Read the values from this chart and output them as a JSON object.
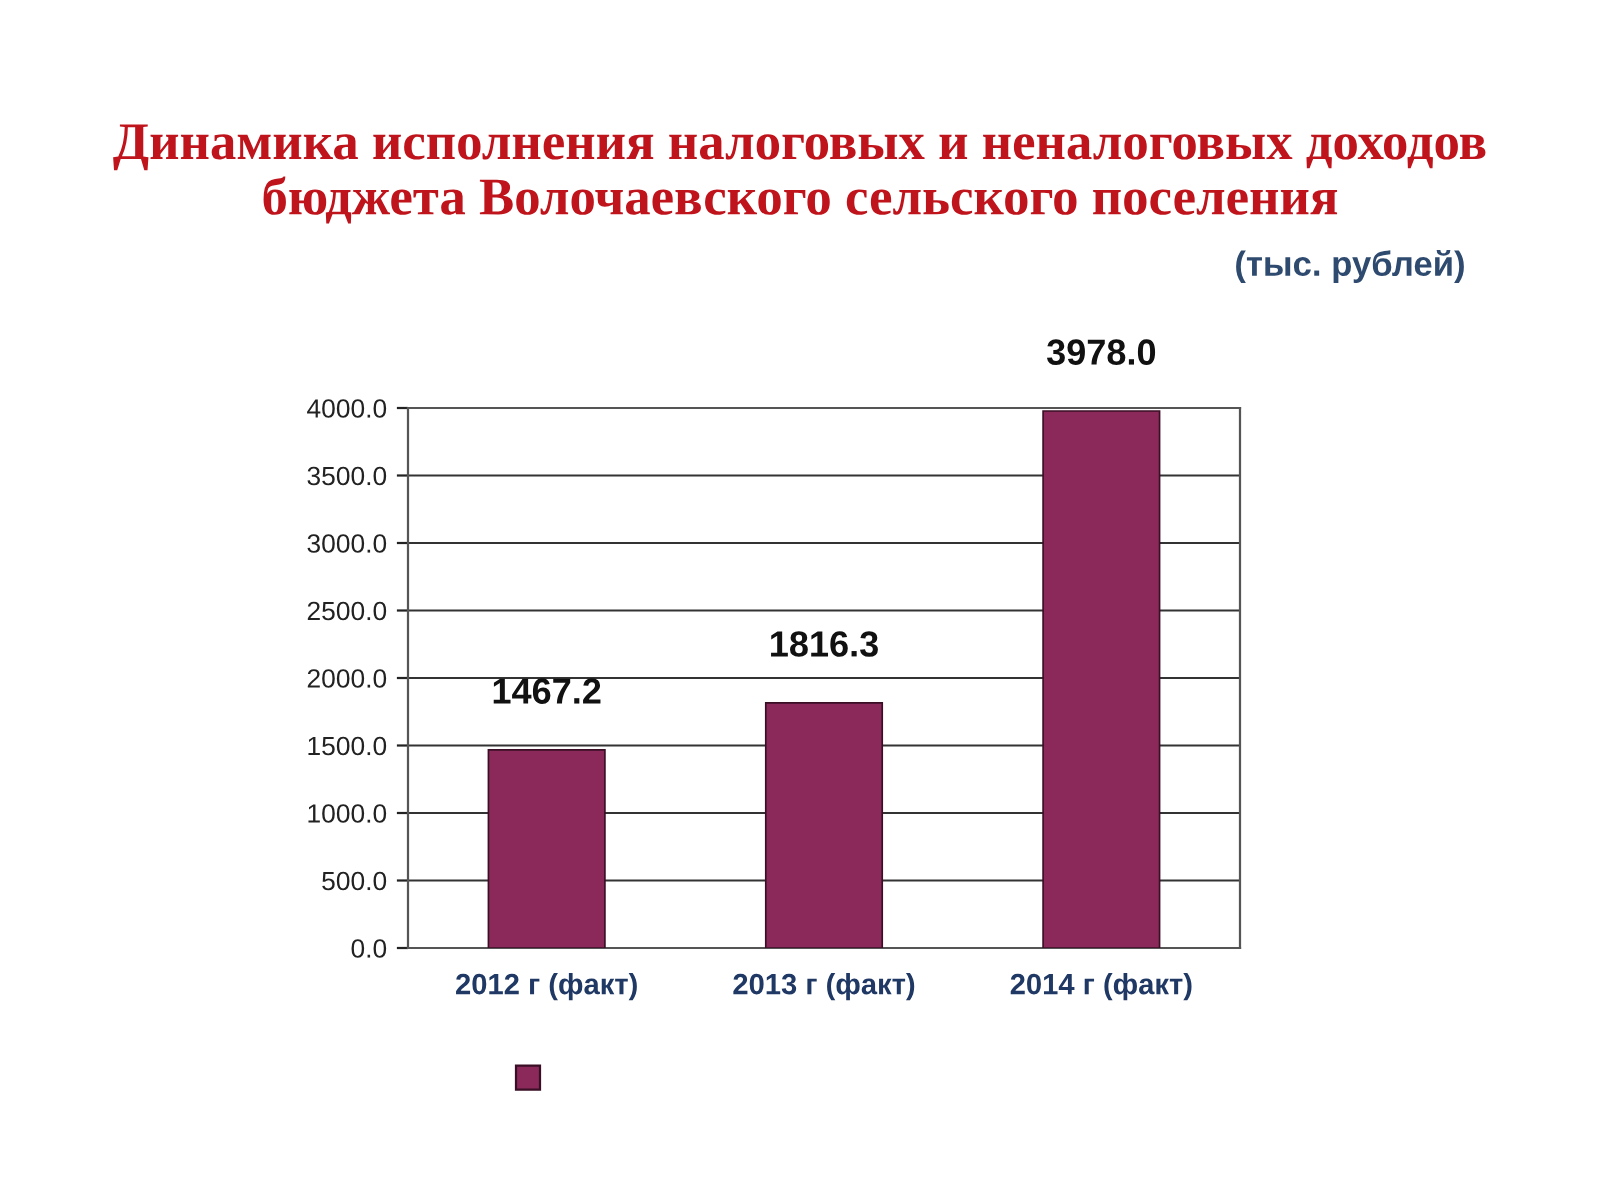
{
  "chart_data": {
    "type": "bar",
    "title": "Динамика исполнения налоговых и неналоговых доходов\nбюджета Волочаевского сельского поселения",
    "subtitle": "(тыс. рублей)",
    "categories": [
      "2012 г (факт)",
      "2013 г (факт)",
      "2014 г (факт)"
    ],
    "series": [
      {
        "color": "#8b2a5a",
        "values": [
          1467.2,
          1816.3,
          3978
        ],
        "value_labels": [
          "1467.2",
          "1816.3",
          "3978.0"
        ]
      }
    ],
    "ylim": [
      0,
      4000
    ],
    "yticks": [
      {
        "value": 0,
        "label": "0.0"
      },
      {
        "value": 500,
        "label": "500.0"
      },
      {
        "value": 1000,
        "label": "1000.0"
      },
      {
        "value": 1500,
        "label": "1500.0"
      },
      {
        "value": 2000,
        "label": "2000.0"
      },
      {
        "value": 2500,
        "label": "2500.0"
      },
      {
        "value": 3000,
        "label": "3000.0"
      },
      {
        "value": 3500,
        "label": "3500.0"
      },
      {
        "value": 4000,
        "label": "4000.0"
      }
    ],
    "grid": "y"
  }
}
